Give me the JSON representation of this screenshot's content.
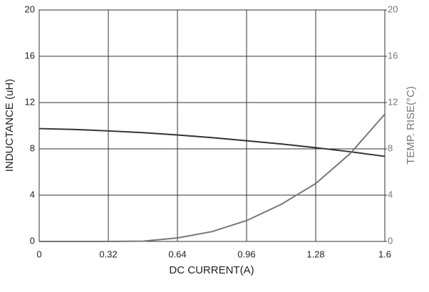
{
  "chart_data": {
    "type": "line",
    "x_label": "DC CURRENT(A)",
    "y_label": "INDUCTANCE (uH)",
    "y2_label": "TEMP. RISE(°C)",
    "x": [
      0,
      0.16,
      0.32,
      0.48,
      0.64,
      0.8,
      0.96,
      1.12,
      1.28,
      1.44,
      1.6
    ],
    "series": [
      {
        "name": "INDUCTANCE (uH)",
        "color": "#333333",
        "values": [
          9.75,
          9.68,
          9.55,
          9.4,
          9.2,
          8.97,
          8.7,
          8.42,
          8.1,
          7.75,
          7.35
        ]
      },
      {
        "name": "TEMP. RISE(°C)",
        "color": "#777777",
        "axis": "y2",
        "values": [
          0,
          0,
          0,
          0.02,
          0.3,
          0.85,
          1.8,
          3.2,
          5.0,
          7.6,
          11.0
        ]
      }
    ],
    "xlim": [
      0,
      1.6
    ],
    "xticks": [
      0,
      0.32,
      0.64,
      0.96,
      1.28,
      1.6
    ],
    "ylim": [
      0,
      20
    ],
    "yticks": [
      0,
      4,
      8,
      12,
      16,
      20
    ],
    "y2lim": [
      0,
      20
    ],
    "y2ticks": [
      0,
      4,
      8,
      12,
      16,
      20
    ],
    "grid": true
  }
}
